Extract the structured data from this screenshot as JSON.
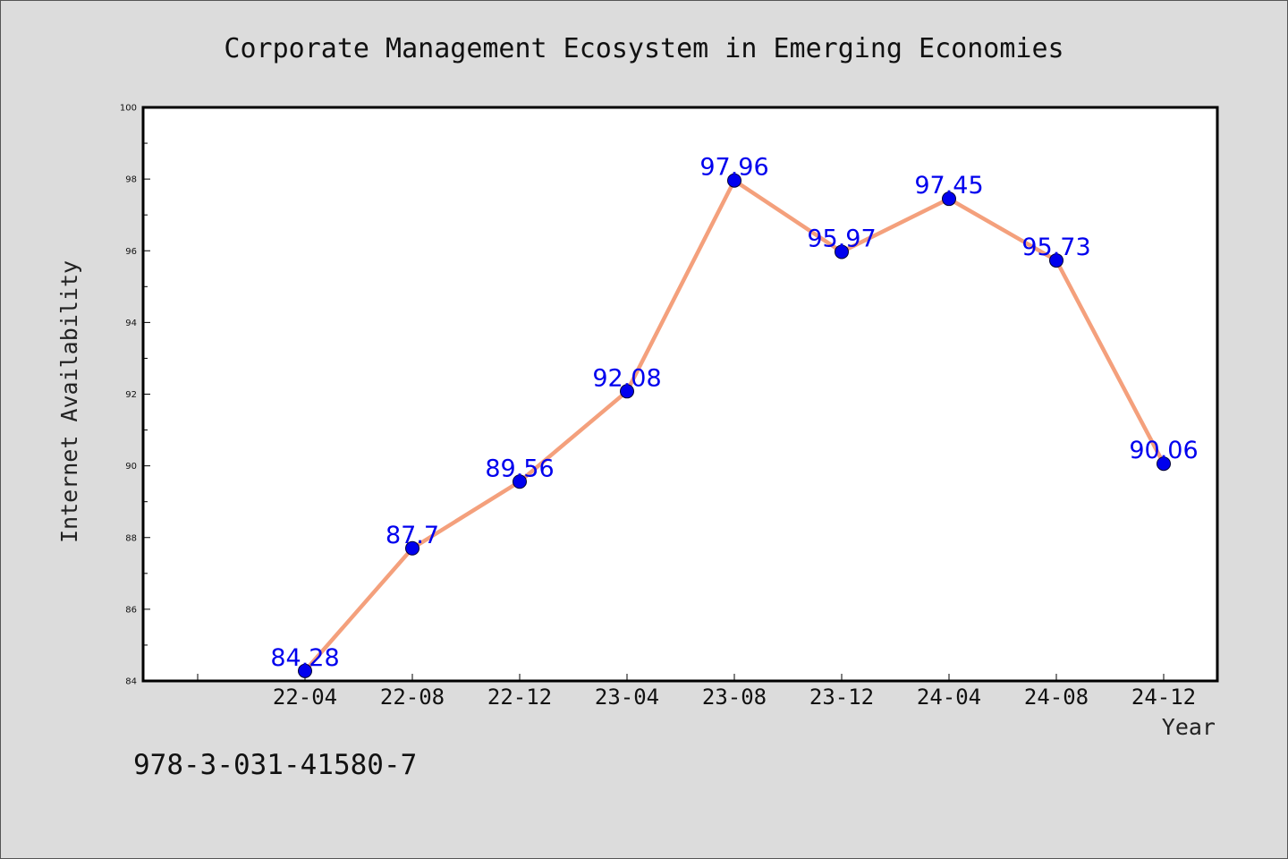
{
  "chart_data": {
    "type": "line",
    "title": "Corporate Management Ecosystem in Emerging Economies",
    "xlabel": "Year",
    "ylabel": "Internet Availability",
    "categories": [
      "22-04",
      "22-08",
      "22-12",
      "23-04",
      "23-08",
      "23-12",
      "24-04",
      "24-08",
      "24-12"
    ],
    "values": [
      84.28,
      87.7,
      89.56,
      92.08,
      97.96,
      95.97,
      97.45,
      95.73,
      90.06
    ],
    "ylim": [
      84,
      100
    ],
    "yticks": [
      "84",
      "86",
      "88",
      "90",
      "92",
      "94",
      "96",
      "98",
      "100"
    ],
    "grid": false,
    "legend": "none",
    "line_color": "#f4a07c",
    "marker_color": "#0000ee",
    "data_label_color": "#0000ee",
    "plot_background": "#ffffff",
    "figure_background": "#dcdcdc"
  },
  "annotation": {
    "isbn": "978-3-031-41580-7"
  }
}
